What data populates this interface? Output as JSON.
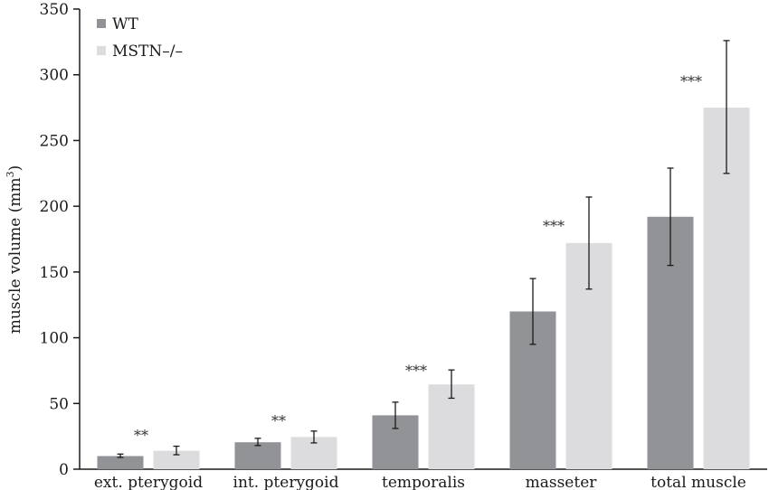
{
  "chart_data": {
    "type": "bar",
    "title": "",
    "xlabel": "",
    "ylabel": "muscle volume (mm",
    "ylabel_superscript": "3",
    "ylabel_suffix": ")",
    "ylim": [
      0,
      350
    ],
    "yticks": [
      0,
      50,
      100,
      150,
      200,
      250,
      300,
      350
    ],
    "grid": false,
    "legend_position": "top-left",
    "categories": [
      "ext. pterygoid",
      "int. pterygoid",
      "temporalis",
      "masseter",
      "total muscle"
    ],
    "series": [
      {
        "name": "WT",
        "color": "#929396",
        "values": [
          10,
          20.5,
          41,
          120,
          192
        ],
        "err_low": [
          9,
          18,
          31,
          95,
          155
        ],
        "err_high": [
          11.5,
          23.5,
          51,
          145,
          229
        ]
      },
      {
        "name": "MSTN–/–",
        "color": "#dcdcde",
        "values": [
          14,
          24.5,
          64.5,
          172,
          275
        ],
        "err_low": [
          11,
          20,
          54,
          137,
          225
        ],
        "err_high": [
          17.5,
          29,
          75.5,
          207,
          326
        ]
      }
    ],
    "significance": [
      "**",
      "**",
      "***",
      "***",
      "***"
    ],
    "significance_y": [
      29,
      40,
      78,
      188,
      298
    ]
  }
}
